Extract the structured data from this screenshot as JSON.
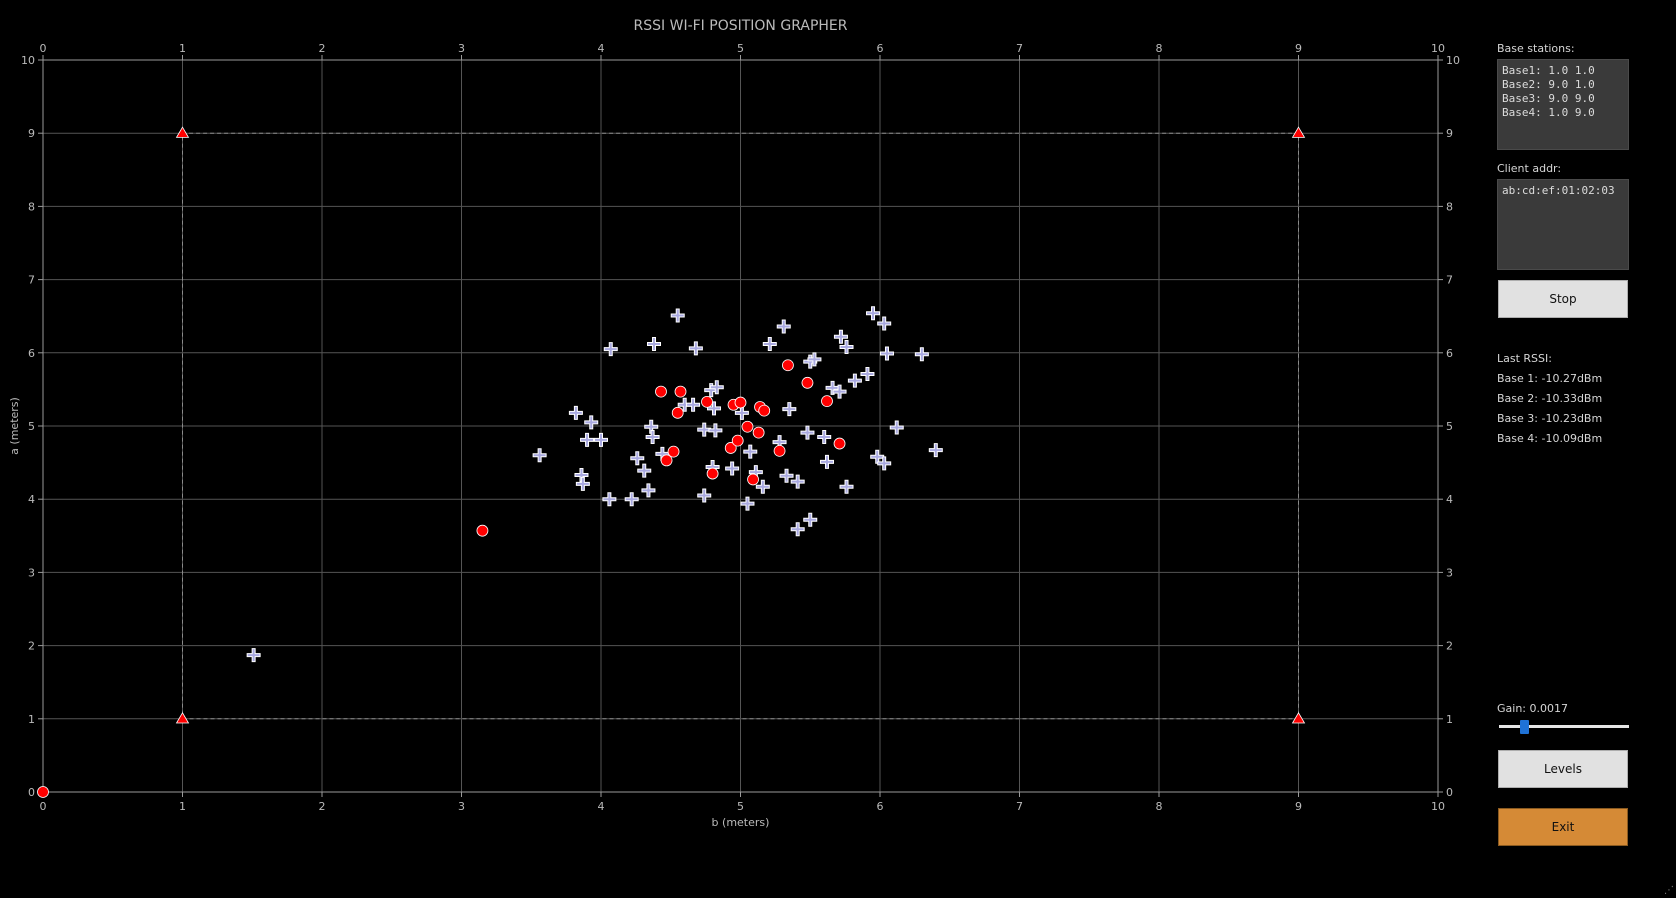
{
  "window": {
    "title": "RSSI WI-FI POSITION GRAPHER"
  },
  "sidebar": {
    "base_stations_label": "Base stations:",
    "base_stations_text": "Base1: 1.0 1.0\nBase2: 9.0 1.0\nBase3: 9.0 9.0\nBase4: 1.0 9.0",
    "client_addr_label": "Client addr:",
    "client_addr_value": "ab:cd:ef:01:02:03",
    "stop_label": "Stop",
    "last_rssi_label": "Last RSSI:",
    "rssi": [
      "Base 1: -10.27dBm",
      "Base 2: -10.33dBm",
      "Base 3: -10.23dBm",
      "Base 4: -10.09dBm"
    ],
    "gain_label": "Gain: 0.0017",
    "gain_fraction": 0.17,
    "levels_label": "Levels",
    "exit_label": "Exit"
  },
  "chart_data": {
    "type": "scatter",
    "title": "RSSI WI-FI POSITION GRAPHER",
    "xlabel": "b (meters)",
    "ylabel": "a (meters)",
    "xlim": [
      0,
      10
    ],
    "ylim": [
      0,
      10
    ],
    "xticks": [
      "0",
      "1",
      "2",
      "3",
      "4",
      "5",
      "6",
      "7",
      "8",
      "9",
      "10"
    ],
    "yticks": [
      "0",
      "1",
      "2",
      "3",
      "4",
      "5",
      "6",
      "7",
      "8",
      "9",
      "10"
    ],
    "grid": true,
    "colors": {
      "bases": "#ff0000",
      "estimates": "#ff0000",
      "samples": "#a9a9e0",
      "grid": "#555555",
      "frame": "#9a9a9a"
    },
    "base_stations": [
      {
        "x": 1.0,
        "y": 1.0
      },
      {
        "x": 9.0,
        "y": 1.0
      },
      {
        "x": 9.0,
        "y": 9.0
      },
      {
        "x": 1.0,
        "y": 9.0
      }
    ],
    "estimates": [
      {
        "x": 3.15,
        "y": 3.57
      },
      {
        "x": 4.43,
        "y": 5.47
      },
      {
        "x": 4.57,
        "y": 5.47
      },
      {
        "x": 4.55,
        "y": 5.18
      },
      {
        "x": 4.47,
        "y": 4.53
      },
      {
        "x": 4.52,
        "y": 4.65
      },
      {
        "x": 4.76,
        "y": 5.33
      },
      {
        "x": 4.8,
        "y": 4.35
      },
      {
        "x": 4.93,
        "y": 4.7
      },
      {
        "x": 4.95,
        "y": 5.29
      },
      {
        "x": 4.98,
        "y": 4.8
      },
      {
        "x": 5.0,
        "y": 5.32
      },
      {
        "x": 5.05,
        "y": 4.99
      },
      {
        "x": 5.09,
        "y": 4.27
      },
      {
        "x": 5.13,
        "y": 4.91
      },
      {
        "x": 5.14,
        "y": 5.26
      },
      {
        "x": 5.17,
        "y": 5.21
      },
      {
        "x": 5.28,
        "y": 4.66
      },
      {
        "x": 5.34,
        "y": 5.83
      },
      {
        "x": 5.48,
        "y": 5.59
      },
      {
        "x": 5.62,
        "y": 5.34
      },
      {
        "x": 5.71,
        "y": 4.76
      },
      {
        "x": 0.0,
        "y": 0.0
      }
    ],
    "samples": [
      {
        "x": 1.51,
        "y": 1.87
      },
      {
        "x": 3.56,
        "y": 4.6
      },
      {
        "x": 3.82,
        "y": 5.18
      },
      {
        "x": 3.86,
        "y": 4.33
      },
      {
        "x": 3.87,
        "y": 4.21
      },
      {
        "x": 3.9,
        "y": 4.81
      },
      {
        "x": 3.93,
        "y": 5.05
      },
      {
        "x": 4.0,
        "y": 4.81
      },
      {
        "x": 4.06,
        "y": 4.0
      },
      {
        "x": 4.07,
        "y": 6.05
      },
      {
        "x": 4.22,
        "y": 4.0
      },
      {
        "x": 4.26,
        "y": 4.56
      },
      {
        "x": 4.31,
        "y": 4.39
      },
      {
        "x": 4.34,
        "y": 4.12
      },
      {
        "x": 4.36,
        "y": 4.99
      },
      {
        "x": 4.37,
        "y": 4.85
      },
      {
        "x": 4.38,
        "y": 6.12
      },
      {
        "x": 4.44,
        "y": 4.62
      },
      {
        "x": 4.55,
        "y": 6.51
      },
      {
        "x": 4.6,
        "y": 5.29
      },
      {
        "x": 4.66,
        "y": 5.29
      },
      {
        "x": 4.68,
        "y": 6.06
      },
      {
        "x": 4.74,
        "y": 4.05
      },
      {
        "x": 4.74,
        "y": 4.95
      },
      {
        "x": 4.79,
        "y": 5.49
      },
      {
        "x": 4.8,
        "y": 4.44
      },
      {
        "x": 4.81,
        "y": 5.24
      },
      {
        "x": 4.82,
        "y": 4.94
      },
      {
        "x": 4.83,
        "y": 5.53
      },
      {
        "x": 4.94,
        "y": 4.42
      },
      {
        "x": 5.01,
        "y": 5.18
      },
      {
        "x": 5.05,
        "y": 3.94
      },
      {
        "x": 5.07,
        "y": 4.65
      },
      {
        "x": 5.11,
        "y": 4.37
      },
      {
        "x": 5.16,
        "y": 4.17
      },
      {
        "x": 5.21,
        "y": 6.12
      },
      {
        "x": 5.28,
        "y": 4.78
      },
      {
        "x": 5.31,
        "y": 6.36
      },
      {
        "x": 5.33,
        "y": 4.32
      },
      {
        "x": 5.35,
        "y": 5.23
      },
      {
        "x": 5.41,
        "y": 4.24
      },
      {
        "x": 5.41,
        "y": 3.59
      },
      {
        "x": 5.48,
        "y": 4.91
      },
      {
        "x": 5.5,
        "y": 5.88
      },
      {
        "x": 5.5,
        "y": 3.72
      },
      {
        "x": 5.53,
        "y": 5.91
      },
      {
        "x": 5.6,
        "y": 4.85
      },
      {
        "x": 5.62,
        "y": 4.51
      },
      {
        "x": 5.66,
        "y": 5.52
      },
      {
        "x": 5.71,
        "y": 5.47
      },
      {
        "x": 5.72,
        "y": 6.22
      },
      {
        "x": 5.76,
        "y": 6.08
      },
      {
        "x": 5.76,
        "y": 4.17
      },
      {
        "x": 5.82,
        "y": 5.62
      },
      {
        "x": 5.91,
        "y": 5.71
      },
      {
        "x": 5.95,
        "y": 6.54
      },
      {
        "x": 5.98,
        "y": 4.58
      },
      {
        "x": 6.03,
        "y": 6.4
      },
      {
        "x": 6.03,
        "y": 4.49
      },
      {
        "x": 6.05,
        "y": 5.99
      },
      {
        "x": 6.12,
        "y": 4.98
      },
      {
        "x": 6.3,
        "y": 5.98
      },
      {
        "x": 6.4,
        "y": 4.67
      }
    ]
  }
}
